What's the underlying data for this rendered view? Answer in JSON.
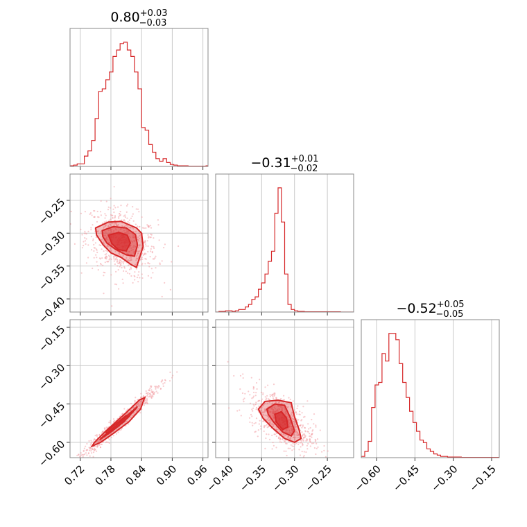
{
  "figure": {
    "accent_color": "#d62728",
    "cloud_color": "#f2a0a5",
    "fill_color": "#d62728"
  },
  "chart_data": {
    "type": "corner",
    "grid": true,
    "parameters": [
      {
        "title": {
          "main": "0.80",
          "sup": "+0.03",
          "sub": "−0.03"
        },
        "median": 0.8,
        "err_plus": 0.03,
        "err_minus": 0.03,
        "range": [
          0.7,
          0.97
        ],
        "ticks": [
          0.72,
          0.78,
          0.84,
          0.9,
          0.96
        ],
        "tick_labels": [
          "0.72",
          "0.78",
          "0.84",
          "0.90",
          "0.96"
        ],
        "hist_bins": [
          0.7,
          0.707,
          0.714,
          0.721,
          0.728,
          0.735,
          0.742,
          0.749,
          0.756,
          0.763,
          0.77,
          0.777,
          0.784,
          0.791,
          0.798,
          0.805,
          0.812,
          0.819,
          0.826,
          0.833,
          0.84,
          0.847,
          0.854,
          0.861,
          0.868,
          0.875,
          0.882,
          0.889,
          0.896,
          0.903,
          0.91,
          0.917,
          0.924,
          0.931,
          0.938,
          0.945,
          0.952,
          0.959,
          0.966,
          0.97
        ],
        "hist_counts": [
          0.005,
          0.01,
          0.02,
          0.02,
          0.08,
          0.12,
          0.2,
          0.37,
          0.58,
          0.6,
          0.67,
          0.73,
          0.85,
          0.9,
          0.95,
          0.96,
          0.9,
          0.85,
          0.73,
          0.6,
          0.3,
          0.28,
          0.17,
          0.11,
          0.06,
          0.04,
          0.06,
          0.03,
          0.015,
          0.01,
          0.005,
          0.005,
          0.005,
          0.002,
          0.002,
          0.002,
          0.002,
          0.002,
          0.005
        ]
      },
      {
        "title": {
          "main": "−0.31",
          "sup": "+0.01",
          "sub": "−0.02"
        },
        "median": -0.31,
        "err_plus": 0.01,
        "err_minus": 0.02,
        "range": [
          -0.42,
          -0.21
        ],
        "ticks": [
          -0.4,
          -0.35,
          -0.3,
          -0.25
        ],
        "tick_labels": [
          "−0.40",
          "−0.35",
          "−0.30",
          "−0.25"
        ],
        "y_ticks": [
          -0.25,
          -0.3,
          -0.35,
          -0.4
        ],
        "y_tick_labels": [
          "−0.25",
          "−0.30",
          "−0.35",
          "−0.40"
        ],
        "hist_bins": [
          -0.42,
          -0.415,
          -0.41,
          -0.405,
          -0.4,
          -0.395,
          -0.39,
          -0.385,
          -0.38,
          -0.375,
          -0.37,
          -0.365,
          -0.36,
          -0.355,
          -0.35,
          -0.345,
          -0.34,
          -0.335,
          -0.33,
          -0.325,
          -0.32,
          -0.315,
          -0.31,
          -0.305,
          -0.3,
          -0.295,
          -0.29,
          -0.285,
          -0.28,
          -0.275,
          -0.27,
          -0.265,
          -0.26,
          -0.255,
          -0.25,
          -0.245,
          -0.24,
          -0.235,
          -0.23,
          -0.225,
          -0.21
        ],
        "hist_counts": [
          0.0,
          0.005,
          0.005,
          0.01,
          0.01,
          0.005,
          0.01,
          0.02,
          0.02,
          0.04,
          0.06,
          0.1,
          0.12,
          0.18,
          0.23,
          0.3,
          0.4,
          0.48,
          0.78,
          0.98,
          0.71,
          0.3,
          0.06,
          0.02,
          0.01,
          0.005,
          0.005,
          0.002,
          0.002,
          0.002,
          0.002,
          0.002,
          0.002,
          0.002,
          0.002,
          0.002,
          0.002,
          0.002,
          0.0,
          0.0
        ]
      },
      {
        "title": {
          "main": "−0.52",
          "sup": "+0.05",
          "sub": "−0.05"
        },
        "median": -0.52,
        "err_plus": 0.05,
        "err_minus": 0.05,
        "range": [
          -0.66,
          -0.12
        ],
        "ticks": [
          -0.6,
          -0.45,
          -0.3,
          -0.15
        ],
        "tick_labels": [
          "−0.60",
          "−0.45",
          "−0.30",
          "−0.15"
        ],
        "y_ticks": [
          -0.15,
          -0.3,
          -0.45,
          -0.6
        ],
        "y_tick_labels": [
          "−0.15",
          "−0.30",
          "−0.45",
          "−0.60"
        ],
        "hist_bins": [
          -0.66,
          -0.6465,
          -0.633,
          -0.6195,
          -0.606,
          -0.5925,
          -0.579,
          -0.5655,
          -0.552,
          -0.5385,
          -0.525,
          -0.5115,
          -0.498,
          -0.4845,
          -0.471,
          -0.4575,
          -0.444,
          -0.4305,
          -0.417,
          -0.4035,
          -0.39,
          -0.3765,
          -0.363,
          -0.3495,
          -0.336,
          -0.3225,
          -0.309,
          -0.2955,
          -0.282,
          -0.2685,
          -0.255,
          -0.2415,
          -0.228,
          -0.2145,
          -0.201,
          -0.1875,
          -0.174,
          -0.1605,
          -0.147,
          -0.1335,
          -0.12
        ],
        "hist_counts": [
          0.01,
          0.05,
          0.13,
          0.4,
          0.58,
          0.6,
          0.83,
          0.77,
          0.99,
          0.99,
          0.94,
          0.75,
          0.6,
          0.48,
          0.37,
          0.28,
          0.21,
          0.14,
          0.12,
          0.07,
          0.05,
          0.03,
          0.02,
          0.01,
          0.01,
          0.005,
          0.005,
          0.005,
          0.005,
          0.002,
          0.002,
          0.002,
          0.002,
          0.002,
          0.002,
          0.002,
          0.002,
          0.002,
          0.002,
          0.002
        ]
      }
    ],
    "pairs": [
      {
        "x_param": 0,
        "y_param": 1,
        "contours": [
          [
            [
              0.75,
              -0.292
            ],
            [
              0.775,
              -0.283
            ],
            [
              0.8,
              -0.282
            ],
            [
              0.83,
              -0.292
            ],
            [
              0.84,
              -0.3
            ],
            [
              0.843,
              -0.32
            ],
            [
              0.837,
              -0.335
            ],
            [
              0.83,
              -0.352
            ],
            [
              0.82,
              -0.348
            ],
            [
              0.8,
              -0.337
            ],
            [
              0.78,
              -0.33
            ],
            [
              0.765,
              -0.318
            ],
            [
              0.752,
              -0.303
            ]
          ],
          [
            [
              0.763,
              -0.296
            ],
            [
              0.785,
              -0.29
            ],
            [
              0.81,
              -0.292
            ],
            [
              0.828,
              -0.302
            ],
            [
              0.832,
              -0.318
            ],
            [
              0.826,
              -0.335
            ],
            [
              0.81,
              -0.333
            ],
            [
              0.79,
              -0.325
            ],
            [
              0.772,
              -0.315
            ],
            [
              0.764,
              -0.305
            ]
          ],
          [
            [
              0.775,
              -0.303
            ],
            [
              0.795,
              -0.299
            ],
            [
              0.812,
              -0.303
            ],
            [
              0.818,
              -0.315
            ],
            [
              0.81,
              -0.327
            ],
            [
              0.794,
              -0.325
            ],
            [
              0.782,
              -0.316
            ]
          ]
        ]
      },
      {
        "x_param": 0,
        "y_param": 2,
        "contours": [
          [
            [
              0.743,
              -0.615
            ],
            [
              0.76,
              -0.6
            ],
            [
              0.785,
              -0.565
            ],
            [
              0.815,
              -0.52
            ],
            [
              0.838,
              -0.47
            ],
            [
              0.846,
              -0.425
            ],
            [
              0.836,
              -0.434
            ],
            [
              0.812,
              -0.48
            ],
            [
              0.79,
              -0.52
            ],
            [
              0.768,
              -0.56
            ],
            [
              0.748,
              -0.6
            ]
          ],
          [
            [
              0.758,
              -0.59
            ],
            [
              0.78,
              -0.56
            ],
            [
              0.805,
              -0.52
            ],
            [
              0.828,
              -0.47
            ],
            [
              0.832,
              -0.46
            ],
            [
              0.812,
              -0.495
            ],
            [
              0.79,
              -0.535
            ],
            [
              0.766,
              -0.575
            ]
          ],
          [
            [
              0.775,
              -0.565
            ],
            [
              0.795,
              -0.535
            ],
            [
              0.815,
              -0.5
            ],
            [
              0.81,
              -0.495
            ],
            [
              0.788,
              -0.53
            ],
            [
              0.77,
              -0.56
            ]
          ]
        ]
      },
      {
        "x_param": 1,
        "y_param": 2,
        "contours": [
          [
            [
              -0.355,
              -0.47
            ],
            [
              -0.345,
              -0.44
            ],
            [
              -0.325,
              -0.435
            ],
            [
              -0.305,
              -0.445
            ],
            [
              -0.3,
              -0.5
            ],
            [
              -0.293,
              -0.55
            ],
            [
              -0.29,
              -0.585
            ],
            [
              -0.3,
              -0.6
            ],
            [
              -0.315,
              -0.585
            ],
            [
              -0.333,
              -0.545
            ],
            [
              -0.348,
              -0.505
            ]
          ],
          [
            [
              -0.342,
              -0.47
            ],
            [
              -0.33,
              -0.45
            ],
            [
              -0.315,
              -0.455
            ],
            [
              -0.307,
              -0.5
            ],
            [
              -0.3,
              -0.555
            ],
            [
              -0.305,
              -0.575
            ],
            [
              -0.318,
              -0.56
            ],
            [
              -0.332,
              -0.52
            ],
            [
              -0.34,
              -0.49
            ]
          ],
          [
            [
              -0.33,
              -0.49
            ],
            [
              -0.32,
              -0.48
            ],
            [
              -0.312,
              -0.505
            ],
            [
              -0.31,
              -0.54
            ],
            [
              -0.318,
              -0.55
            ],
            [
              -0.328,
              -0.52
            ]
          ]
        ]
      }
    ]
  }
}
